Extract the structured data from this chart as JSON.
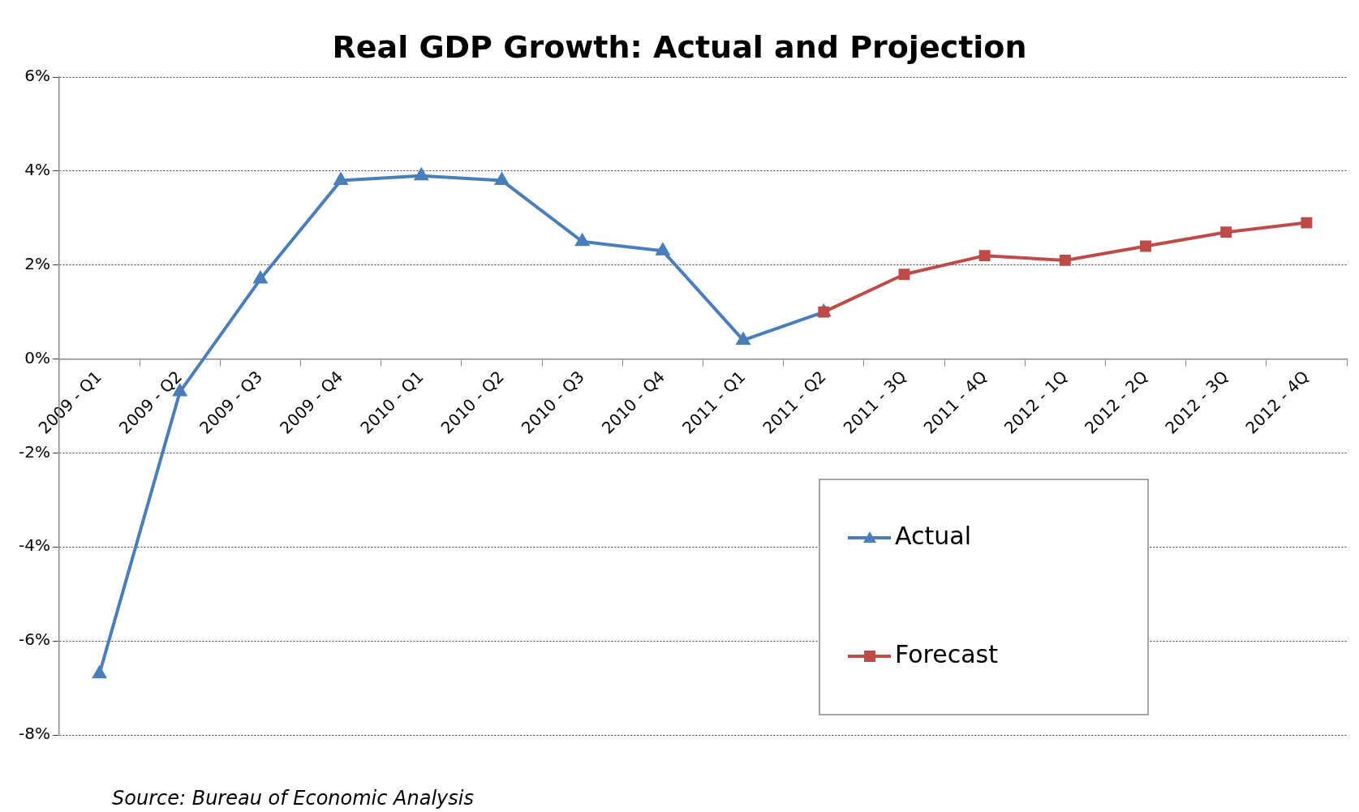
{
  "chart_data": {
    "type": "line",
    "title": "Real GDP Growth: Actual and Projection",
    "categories": [
      "2009 - Q1",
      "2009 - Q2",
      "2009 - Q3",
      "2009 - Q4",
      "2010 - Q1",
      "2010 - Q2",
      "2010 - Q3",
      "2010 - Q4",
      "2011 - Q1",
      "2011 - Q2",
      "2011 - 3Q",
      "2011 - 4Q",
      "2012 - 1Q",
      "2012 - 2Q",
      "2012 - 3Q",
      "2012 - 4Q"
    ],
    "series": [
      {
        "name": "Actual",
        "color": "#4a7ebb",
        "marker": "triangle",
        "values": [
          -6.7,
          -0.7,
          1.7,
          3.8,
          3.9,
          3.8,
          2.5,
          2.3,
          0.4,
          1.0,
          null,
          null,
          null,
          null,
          null,
          null
        ]
      },
      {
        "name": "Forecast",
        "color": "#be4b48",
        "marker": "square",
        "values": [
          null,
          null,
          null,
          null,
          null,
          null,
          null,
          null,
          null,
          1.0,
          1.8,
          2.2,
          2.1,
          2.4,
          2.7,
          2.9
        ]
      }
    ],
    "ylim": [
      -8,
      6
    ],
    "yticks": [
      {
        "value": -8,
        "label": "-8%"
      },
      {
        "value": -6,
        "label": "-6%"
      },
      {
        "value": -4,
        "label": "-4%"
      },
      {
        "value": -2,
        "label": "-2%"
      },
      {
        "value": 0,
        "label": "0%"
      },
      {
        "value": 2,
        "label": "2%"
      },
      {
        "value": 4,
        "label": "4%"
      },
      {
        "value": 6,
        "label": "6%"
      }
    ],
    "grid": "y",
    "legend": "bottom right",
    "line_style": "solid",
    "annotations": [
      "Source: Bureau of Economic Analysis"
    ]
  }
}
